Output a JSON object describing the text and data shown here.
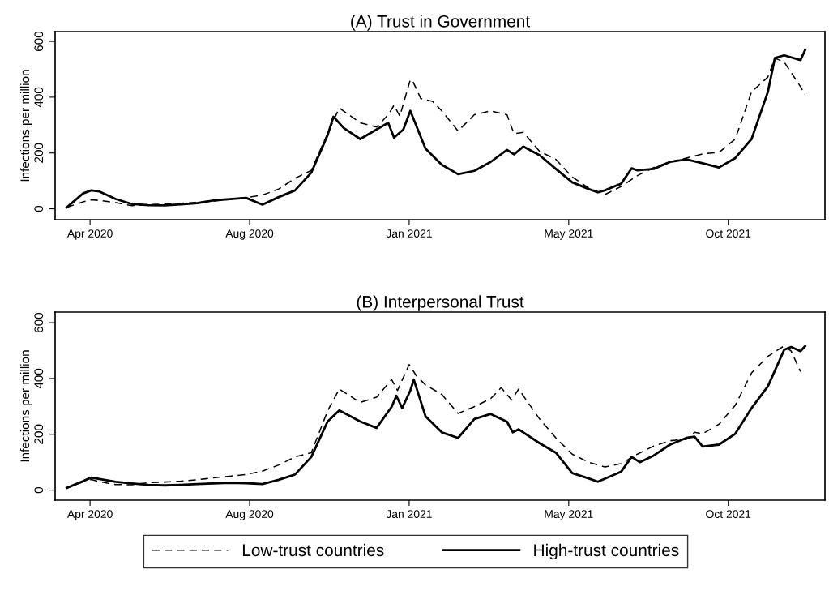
{
  "chart_data": [
    {
      "type": "line",
      "title": "(A) Trust in Government",
      "ylabel": "Infections per million",
      "xlim": [
        "2020-03-06",
        "2021-12-27"
      ],
      "ylim": [
        -39,
        635
      ],
      "xticks": [
        {
          "value": "2020-04-05",
          "label": "Apr 2020"
        },
        {
          "value": "2020-08-20",
          "label": "Aug 2020"
        },
        {
          "value": "2021-01-04",
          "label": "Jan 2021"
        },
        {
          "value": "2021-05-21",
          "label": "May 2021"
        },
        {
          "value": "2021-10-05",
          "label": "Oct 2021"
        }
      ],
      "yticks": [
        0,
        200,
        400,
        600
      ],
      "grid": false,
      "marker": "none",
      "legend": "bottom",
      "series": [
        {
          "name": "Low-trust countries",
          "color": "#000000",
          "line_style": "dashed",
          "x": [
            "2020-03-16",
            "2020-03-30",
            "2020-04-06",
            "2020-04-13",
            "2020-04-27",
            "2020-05-11",
            "2020-05-25",
            "2020-06-08",
            "2020-06-22",
            "2020-07-06",
            "2020-07-20",
            "2020-08-03",
            "2020-08-17",
            "2020-08-31",
            "2020-09-14",
            "2020-09-28",
            "2020-10-12",
            "2020-10-26",
            "2020-11-05",
            "2020-11-23",
            "2020-12-07",
            "2020-12-17",
            "2020-12-22",
            "2020-12-27",
            "2021-01-05",
            "2021-01-07",
            "2021-01-14",
            "2021-01-24",
            "2021-02-01",
            "2021-02-15",
            "2021-03-01",
            "2021-03-15",
            "2021-03-29",
            "2021-04-04",
            "2021-04-12",
            "2021-04-26",
            "2021-05-10",
            "2021-05-24",
            "2021-06-07",
            "2021-06-21",
            "2021-07-05",
            "2021-07-19",
            "2021-08-02",
            "2021-08-16",
            "2021-08-30",
            "2021-09-13",
            "2021-09-27",
            "2021-10-11",
            "2021-10-25",
            "2021-11-08",
            "2021-11-14",
            "2021-11-22",
            "2021-12-06",
            "2021-12-10"
          ],
          "values": [
            5,
            25,
            32,
            30,
            22,
            11,
            15,
            17,
            20,
            23,
            28,
            34,
            40,
            49,
            71,
            109,
            138,
            270,
            361,
            308,
            293,
            337,
            371,
            332,
            463,
            458,
            395,
            385,
            351,
            279,
            337,
            351,
            337,
            269,
            274,
            206,
            177,
            114,
            75,
            51,
            80,
            119,
            148,
            168,
            182,
            197,
            202,
            250,
            419,
            472,
            540,
            526,
            438,
            409
          ]
        },
        {
          "name": "High-trust countries",
          "color": "#000000",
          "line_style": "solid",
          "x": [
            "2020-03-16",
            "2020-03-30",
            "2020-04-06",
            "2020-04-13",
            "2020-04-27",
            "2020-05-11",
            "2020-05-25",
            "2020-06-08",
            "2020-06-22",
            "2020-07-06",
            "2020-07-20",
            "2020-08-03",
            "2020-08-17",
            "2020-08-31",
            "2020-09-14",
            "2020-09-28",
            "2020-10-12",
            "2020-10-26",
            "2020-10-31",
            "2020-11-09",
            "2020-11-23",
            "2020-12-07",
            "2020-12-17",
            "2020-12-22",
            "2020-12-30",
            "2021-01-05",
            "2021-01-18",
            "2021-02-01",
            "2021-02-15",
            "2021-03-01",
            "2021-03-15",
            "2021-03-29",
            "2021-04-04",
            "2021-04-12",
            "2021-04-26",
            "2021-05-10",
            "2021-05-24",
            "2021-06-07",
            "2021-06-15",
            "2021-06-21",
            "2021-07-05",
            "2021-07-14",
            "2021-07-19",
            "2021-08-02",
            "2021-08-16",
            "2021-08-30",
            "2021-09-13",
            "2021-09-27",
            "2021-10-11",
            "2021-10-25",
            "2021-11-08",
            "2021-11-14",
            "2021-11-22",
            "2021-12-06",
            "2021-12-10"
          ],
          "values": [
            5,
            55,
            66,
            62,
            35,
            17,
            13,
            12,
            16,
            20,
            30,
            35,
            39,
            15,
            42,
            66,
            130,
            264,
            330,
            289,
            250,
            284,
            308,
            255,
            284,
            351,
            216,
            158,
            124,
            136,
            168,
            211,
            195,
            223,
            192,
            143,
            95,
            71,
            59,
            66,
            90,
            145,
            138,
            143,
            168,
            177,
            163,
            148,
            182,
            250,
            419,
            540,
            550,
            533,
            569
          ]
        }
      ]
    },
    {
      "type": "line",
      "title": "(B) Interpersonal Trust",
      "ylabel": "Infections per million",
      "xlim": [
        "2020-03-06",
        "2021-12-27"
      ],
      "ylim": [
        -36,
        638
      ],
      "xticks": [
        {
          "value": "2020-04-05",
          "label": "Apr 2020"
        },
        {
          "value": "2020-08-20",
          "label": "Aug 2020"
        },
        {
          "value": "2021-01-04",
          "label": "Jan 2021"
        },
        {
          "value": "2021-05-21",
          "label": "May 2021"
        },
        {
          "value": "2021-10-05",
          "label": "Oct 2021"
        }
      ],
      "yticks": [
        0,
        200,
        400,
        600
      ],
      "grid": false,
      "marker": "none",
      "series": [
        {
          "color": "#000000",
          "line_style": "dashed",
          "x": [
            "2020-03-16",
            "2020-03-30",
            "2020-04-06",
            "2020-04-13",
            "2020-04-27",
            "2020-05-11",
            "2020-05-25",
            "2020-06-08",
            "2020-06-22",
            "2020-07-06",
            "2020-07-20",
            "2020-08-03",
            "2020-08-17",
            "2020-08-31",
            "2020-09-14",
            "2020-09-28",
            "2020-10-12",
            "2020-10-26",
            "2020-11-05",
            "2020-11-23",
            "2020-12-07",
            "2020-12-20",
            "2020-12-25",
            "2021-01-04",
            "2021-01-10",
            "2021-01-18",
            "2021-02-01",
            "2021-02-15",
            "2021-03-01",
            "2021-03-15",
            "2021-03-24",
            "2021-04-02",
            "2021-04-08",
            "2021-04-26",
            "2021-05-10",
            "2021-05-24",
            "2021-06-07",
            "2021-06-21",
            "2021-07-05",
            "2021-07-19",
            "2021-08-02",
            "2021-08-16",
            "2021-08-30",
            "2021-09-06",
            "2021-09-13",
            "2021-09-27",
            "2021-10-11",
            "2021-10-25",
            "2021-11-08",
            "2021-11-22",
            "2021-11-28",
            "2021-12-06"
          ],
          "values": [
            8,
            30,
            38,
            30,
            20,
            19,
            27,
            29,
            32,
            37,
            44,
            50,
            56,
            68,
            90,
            119,
            134,
            284,
            362,
            314,
            333,
            396,
            357,
            450,
            411,
            377,
            343,
            275,
            299,
            328,
            367,
            323,
            362,
            255,
            187,
            129,
            100,
            83,
            95,
            129,
            158,
            177,
            182,
            207,
            202,
            236,
            304,
            420,
            479,
            517,
            498,
            425
          ]
        },
        {
          "color": "#000000",
          "line_style": "solid",
          "x": [
            "2020-03-16",
            "2020-03-30",
            "2020-04-06",
            "2020-04-13",
            "2020-04-27",
            "2020-05-11",
            "2020-05-25",
            "2020-06-08",
            "2020-06-22",
            "2020-07-06",
            "2020-07-20",
            "2020-08-03",
            "2020-08-17",
            "2020-08-31",
            "2020-09-14",
            "2020-09-28",
            "2020-10-12",
            "2020-10-26",
            "2020-11-05",
            "2020-11-23",
            "2020-12-07",
            "2020-12-20",
            "2020-12-24",
            "2020-12-29",
            "2021-01-05",
            "2021-01-08",
            "2021-01-18",
            "2021-02-01",
            "2021-02-15",
            "2021-03-01",
            "2021-03-15",
            "2021-03-29",
            "2021-04-03",
            "2021-04-08",
            "2021-04-26",
            "2021-05-10",
            "2021-05-24",
            "2021-06-07",
            "2021-06-15",
            "2021-07-05",
            "2021-07-14",
            "2021-07-21",
            "2021-08-02",
            "2021-08-16",
            "2021-08-30",
            "2021-09-06",
            "2021-09-13",
            "2021-09-27",
            "2021-10-11",
            "2021-10-25",
            "2021-11-08",
            "2021-11-22",
            "2021-11-28",
            "2021-12-06",
            "2021-12-10"
          ],
          "values": [
            8,
            32,
            45,
            40,
            30,
            24,
            19,
            17,
            19,
            22,
            24,
            26,
            25,
            22,
            37,
            56,
            119,
            246,
            286,
            246,
            223,
            299,
            338,
            294,
            357,
            396,
            265,
            207,
            187,
            255,
            273,
            245,
            207,
            218,
            168,
            134,
            61,
            42,
            30,
            66,
            119,
            100,
            124,
            163,
            187,
            192,
            156,
            163,
            202,
            294,
            372,
            503,
            513,
            498,
            516
          ]
        }
      ]
    }
  ]
}
